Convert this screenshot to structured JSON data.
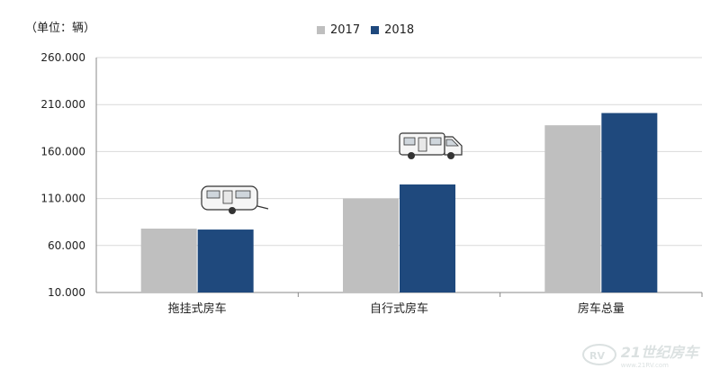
{
  "unit_label": "（单位：辆）",
  "legend": [
    {
      "label": "2017",
      "color": "#bfbfbf"
    },
    {
      "label": "2018",
      "color": "#1f497d"
    }
  ],
  "watermark": {
    "brand": "21世纪房车",
    "url": "www.21RV.com"
  },
  "chart_data": {
    "type": "bar",
    "categories": [
      "拖挂式房车",
      "自行式房车",
      "房车总量"
    ],
    "series": [
      {
        "name": "2017",
        "values": [
          78000,
          110000,
          188000
        ],
        "color": "#bfbfbf"
      },
      {
        "name": "2018",
        "values": [
          77000,
          125000,
          201000
        ],
        "color": "#1f497d"
      }
    ],
    "yticks": [
      10000,
      60000,
      110000,
      160000,
      210000,
      260000
    ],
    "ytick_labels": [
      "10.000",
      "60.000",
      "110.000",
      "160.000",
      "210.000",
      "260.000"
    ],
    "ylim": [
      10000,
      260000
    ],
    "grid": true,
    "legend_position": "top-center"
  }
}
